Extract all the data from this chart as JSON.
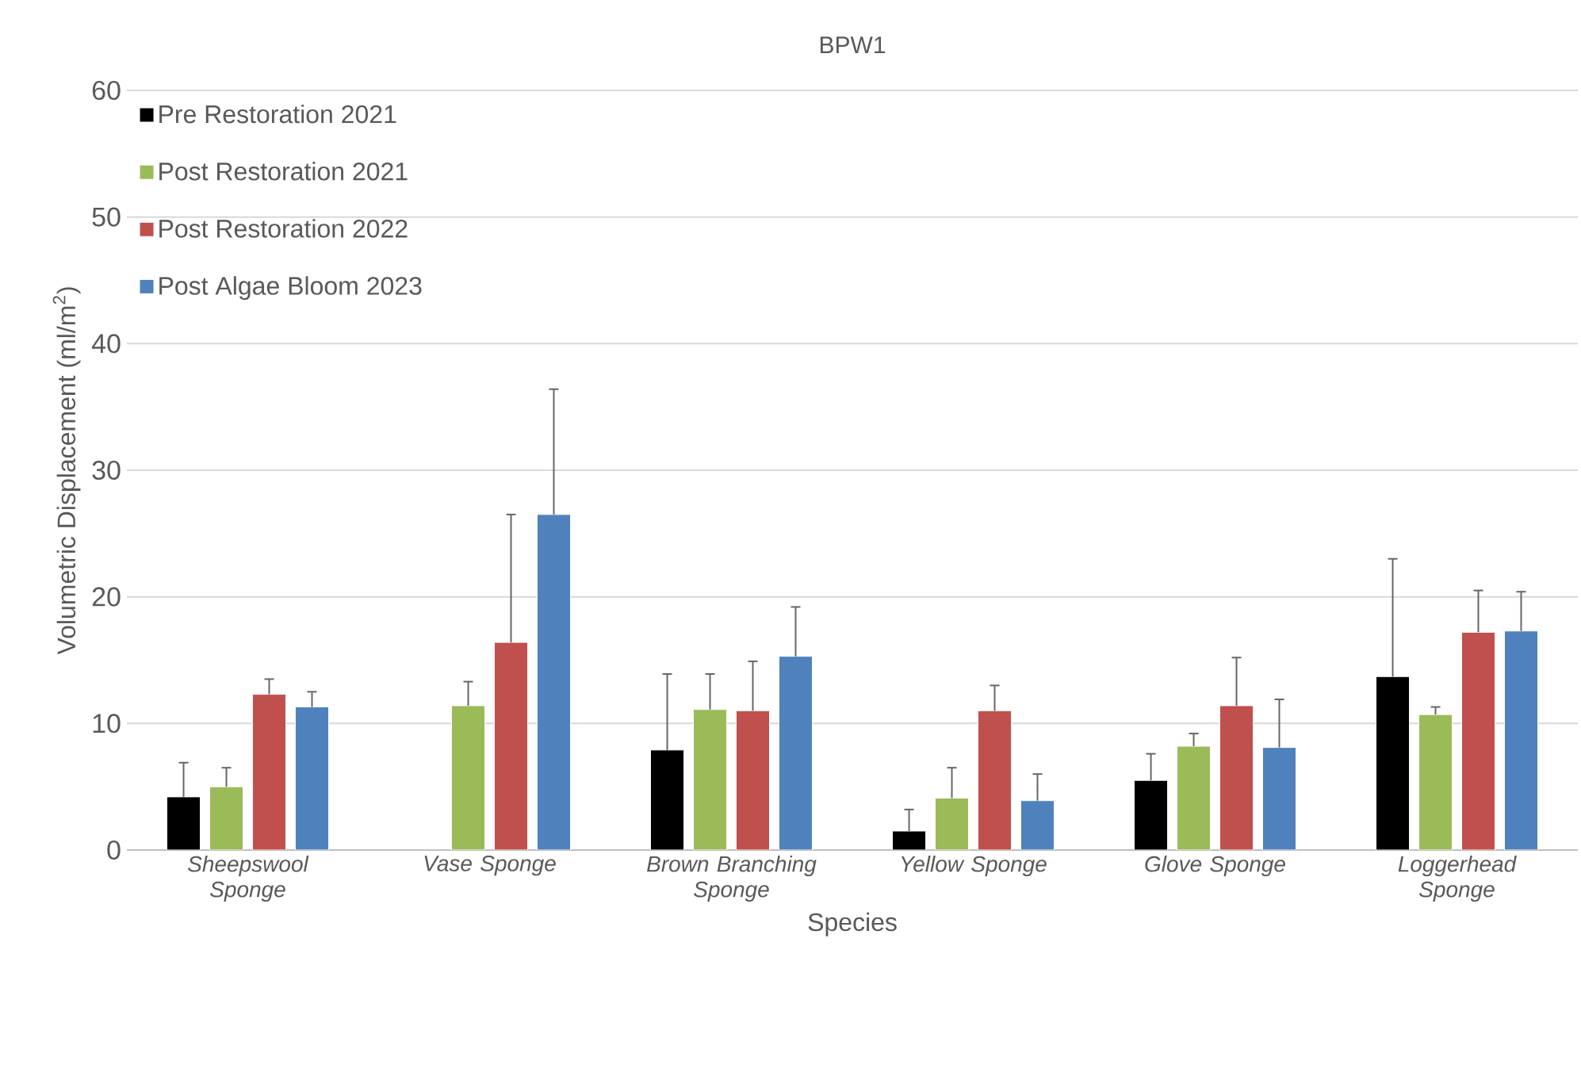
{
  "chart_data": {
    "type": "bar",
    "title": "BPW1",
    "xlabel": "Species",
    "ylabel": "Volumetric Displacement (ml/m$^{2}$)",
    "categories": [
      "Sheepswool Sponge",
      "Vase Sponge",
      "Brown Branching Sponge",
      "Yellow Sponge",
      "Glove Sponge",
      "Loggerhead Sponge"
    ],
    "series": [
      {
        "name": "Pre Restoration 2021",
        "color": "#000000",
        "values": [
          4.2,
          null,
          7.9,
          1.5,
          5.5,
          13.7
        ],
        "errors": [
          [
            4.2,
            6.9
          ],
          null,
          [
            7.9,
            13.9
          ],
          [
            1.5,
            3.2
          ],
          [
            5.5,
            7.6
          ],
          [
            13.7,
            23.0
          ]
        ]
      },
      {
        "name": "Post Restoration 2021",
        "color": "#9bbb59",
        "values": [
          5.0,
          11.4,
          11.1,
          4.1,
          8.2,
          10.7
        ],
        "errors": [
          [
            5.0,
            6.5
          ],
          [
            11.4,
            13.3
          ],
          [
            11.1,
            13.9
          ],
          [
            4.1,
            6.5
          ],
          [
            8.2,
            9.2
          ],
          [
            10.7,
            11.3
          ]
        ]
      },
      {
        "name": "Post Restoration 2022",
        "color": "#c0504d",
        "values": [
          12.3,
          16.4,
          11.0,
          11.0,
          11.4,
          17.2
        ],
        "errors": [
          [
            12.3,
            13.5
          ],
          [
            16.4,
            26.5
          ],
          [
            11.0,
            14.9
          ],
          [
            11.0,
            13.0
          ],
          [
            11.4,
            15.2
          ],
          [
            17.2,
            20.5
          ]
        ]
      },
      {
        "name": "Post Algae Bloom 2023",
        "color": "#4f81bd",
        "values": [
          11.3,
          26.5,
          15.3,
          3.9,
          8.1,
          17.3
        ],
        "errors": [
          [
            11.3,
            12.5
          ],
          [
            26.5,
            36.4
          ],
          [
            15.3,
            19.2
          ],
          [
            3.9,
            6.0
          ],
          [
            8.1,
            11.9
          ],
          [
            17.3,
            20.4
          ]
        ]
      }
    ],
    "ylim": [
      0,
      60
    ],
    "yticks": [
      0,
      10,
      20,
      30,
      40,
      50,
      60
    ],
    "grid": "y",
    "legend": "top left"
  }
}
